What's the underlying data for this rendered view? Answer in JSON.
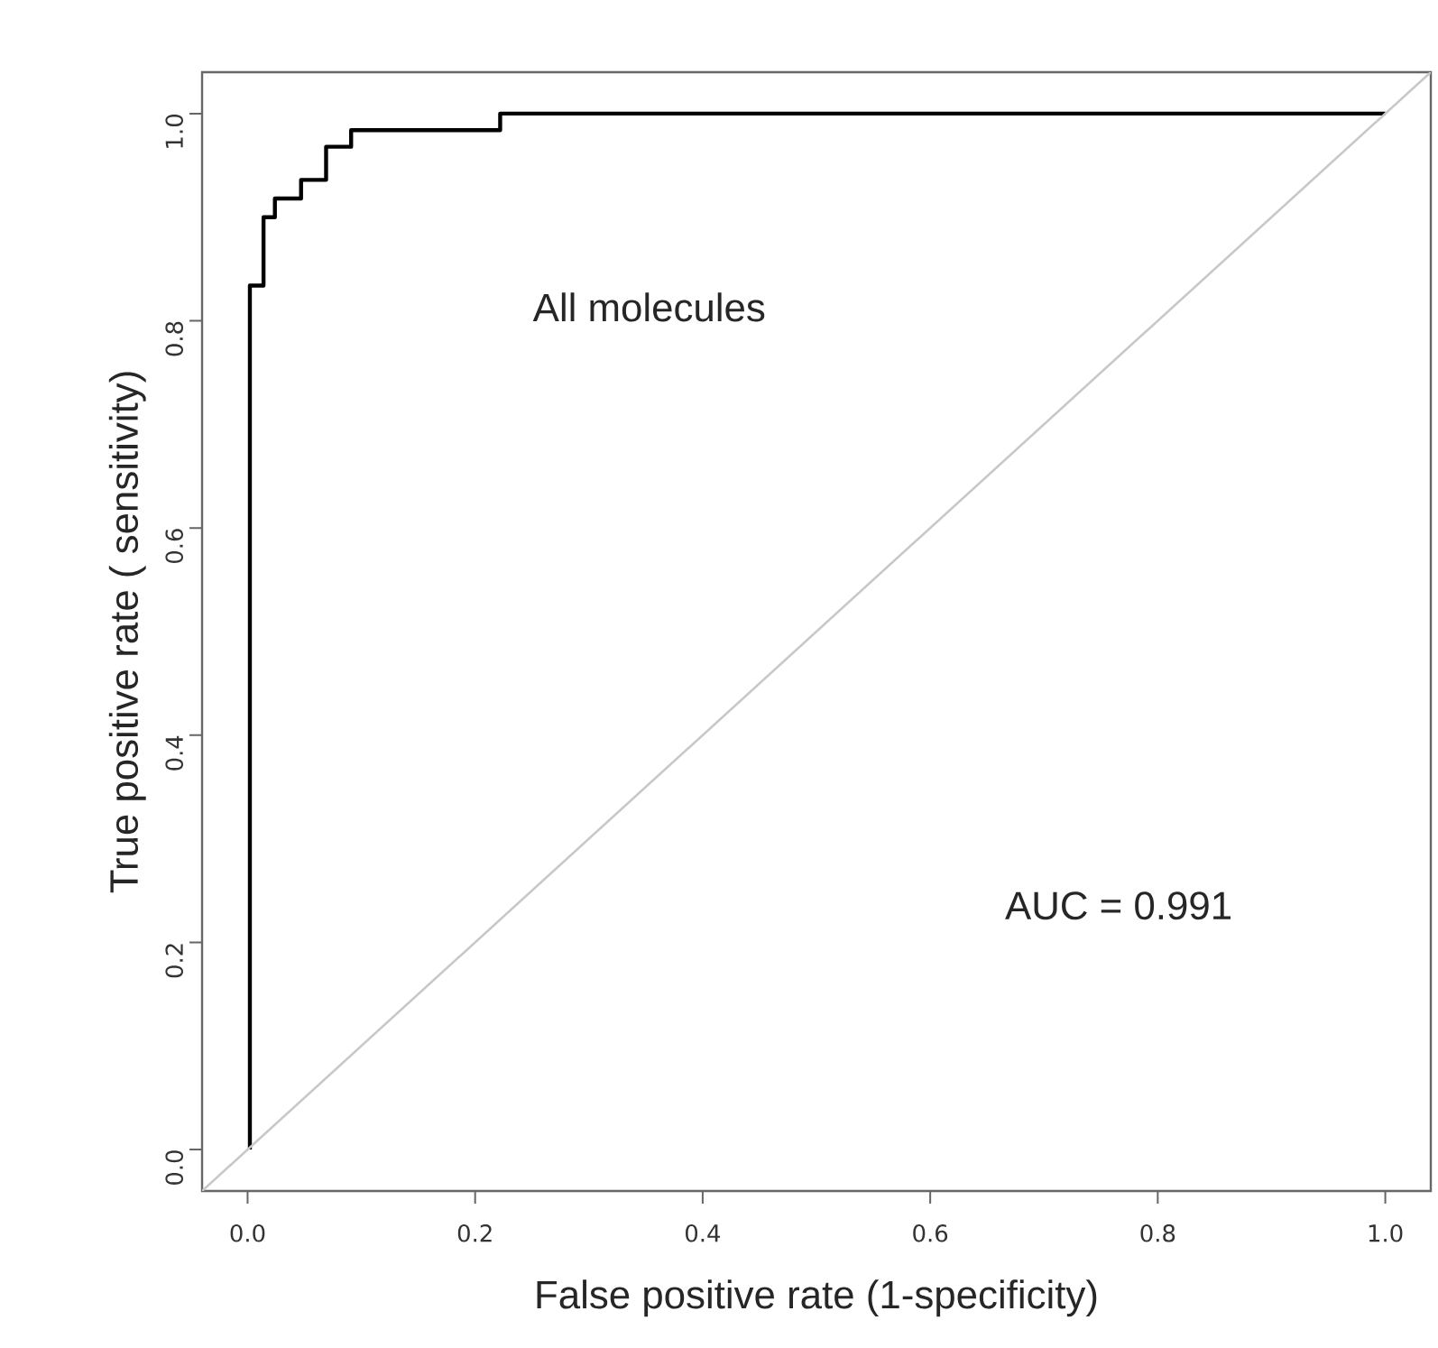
{
  "chart_data": {
    "type": "line",
    "xlabel": "False  positive rate (1-specificity)",
    "ylabel": "True positive rate ( sensitivity)",
    "annotations": [
      "All molecules",
      "AUC = 0.991"
    ],
    "series": [
      {
        "color": "#000000",
        "x": [
          0.002,
          0.002,
          0.014,
          0.014,
          0.024,
          0.024,
          0.047,
          0.047,
          0.069,
          0.069,
          0.091,
          0.091,
          0.222,
          0.222,
          1.0
        ],
        "values": [
          0.0,
          0.834,
          0.834,
          0.9,
          0.9,
          0.918,
          0.918,
          0.936,
          0.936,
          0.968,
          0.968,
          0.984,
          0.984,
          1.0,
          1.0
        ]
      },
      {
        "color": "#c8c8c8",
        "x": [
          -0.04,
          1.04
        ],
        "values": [
          -0.04,
          1.04
        ]
      }
    ],
    "xlim": [
      -0.04,
      1.04
    ],
    "ylim": [
      -0.04,
      1.04
    ],
    "xticks": [
      {
        "value": 0,
        "label": "0.0"
      },
      {
        "value": 0.2,
        "label": "0.2"
      },
      {
        "value": 0.4,
        "label": "0.4"
      },
      {
        "value": 0.6,
        "label": "0.6"
      },
      {
        "value": 0.8,
        "label": "0.8"
      },
      {
        "value": 1,
        "label": "1.0"
      }
    ],
    "yticks": [
      {
        "value": 0,
        "label": "0.0"
      },
      {
        "value": 0.2,
        "label": "0.2"
      },
      {
        "value": 0.4,
        "label": "0.4"
      },
      {
        "value": 0.6,
        "label": "0.6"
      },
      {
        "value": 0.8,
        "label": "0.8"
      },
      {
        "value": 1,
        "label": "1.0"
      }
    ],
    "line_style": "solid"
  }
}
